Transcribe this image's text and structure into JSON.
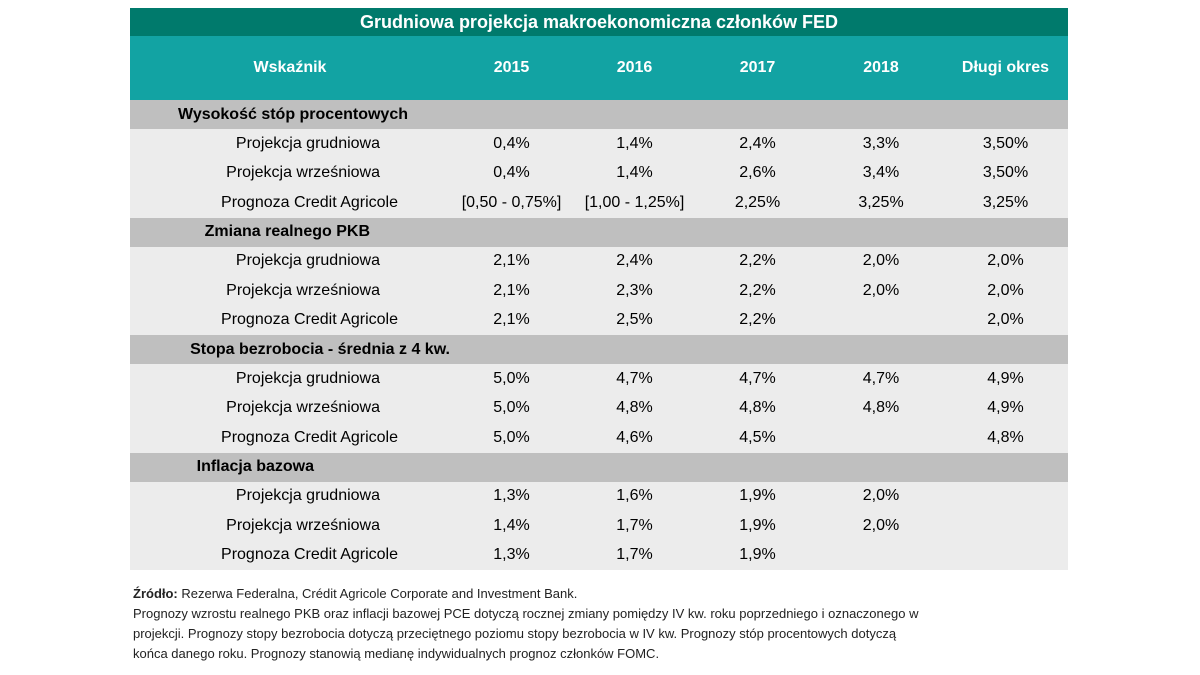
{
  "title": "Grudniowa projekcja makroekonomiczna członków FED",
  "headers": [
    "Wskaźnik",
    "2015",
    "2016",
    "2017",
    "2018",
    "Długi okres"
  ],
  "sections": [
    {
      "name": "Wysokość stóp procentowych",
      "rows": [
        {
          "label": "Projekcja grudniowa",
          "values": [
            "0,4%",
            "1,4%",
            "2,4%",
            "3,3%",
            "3,50%"
          ]
        },
        {
          "label": "Projekcja wrześniowa",
          "values": [
            "0,4%",
            "1,4%",
            "2,6%",
            "3,4%",
            "3,50%"
          ]
        },
        {
          "label": "Prognoza Credit Agricole",
          "values": [
            "[0,50 - 0,75%]",
            "[1,00 - 1,25%]",
            "2,25%",
            "3,25%",
            "3,25%"
          ]
        }
      ]
    },
    {
      "name": "Zmiana realnego PKB",
      "rows": [
        {
          "label": "Projekcja grudniowa",
          "values": [
            "2,1%",
            "2,4%",
            "2,2%",
            "2,0%",
            "2,0%"
          ]
        },
        {
          "label": "Projekcja wrześniowa",
          "values": [
            "2,1%",
            "2,3%",
            "2,2%",
            "2,0%",
            "2,0%"
          ]
        },
        {
          "label": "Prognoza Credit Agricole",
          "values": [
            "2,1%",
            "2,5%",
            "2,2%",
            "",
            "2,0%"
          ]
        }
      ]
    },
    {
      "name": "Stopa bezrobocia - średnia z 4 kw.",
      "rows": [
        {
          "label": "Projekcja grudniowa",
          "values": [
            "5,0%",
            "4,7%",
            "4,7%",
            "4,7%",
            "4,9%"
          ]
        },
        {
          "label": "Projekcja wrześniowa",
          "values": [
            "5,0%",
            "4,8%",
            "4,8%",
            "4,8%",
            "4,9%"
          ]
        },
        {
          "label": "Prognoza Credit Agricole",
          "values": [
            "5,0%",
            "4,6%",
            "4,5%",
            "",
            "4,8%"
          ]
        }
      ]
    },
    {
      "name": "Inflacja bazowa",
      "rows": [
        {
          "label": "Projekcja grudniowa",
          "values": [
            "1,3%",
            "1,6%",
            "1,9%",
            "2,0%",
            ""
          ]
        },
        {
          "label": "Projekcja wrześniowa",
          "values": [
            "1,4%",
            "1,7%",
            "1,9%",
            "2,0%",
            ""
          ]
        },
        {
          "label": "Prognoza Credit Agricole",
          "values": [
            "1,3%",
            "1,7%",
            "1,9%",
            "",
            ""
          ]
        }
      ]
    }
  ],
  "footnote": {
    "source_label": "Źródło:",
    "source_text": " Rezerwa Federalna, Crédit Agricole Corporate and Investment Bank.",
    "note_lines": [
      "Prognozy wzrostu realnego PKB oraz inflacji bazowej PCE dotyczą rocznej zmiany pomiędzy IV kw. roku poprzedniego i oznaczonego w",
      "projekcji. Prognozy stopy bezrobocia dotyczą przeciętnego poziomu stopy bezrobocia w IV kw. Prognozy stóp procentowych dotyczą",
      "końca danego roku. Prognozy stanowią medianę indywidualnych prognoz członków FOMC."
    ]
  }
}
